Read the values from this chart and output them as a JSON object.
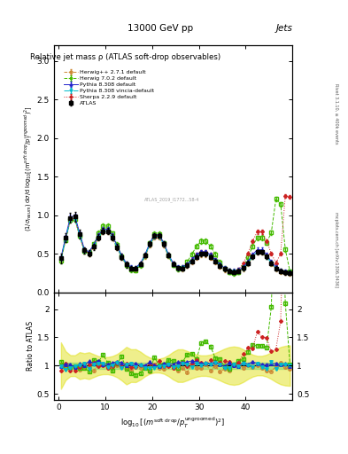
{
  "title_top": "13000 GeV pp",
  "title_right": "Jets",
  "plot_title": "Relative jet mass ρ (ATLAS soft-drop observables)",
  "ylabel_main": "(1/σ_{resum}) dσ/d log_{10}[(m^{soft drop}/p_T^{ungroomed})^2]",
  "ylabel_ratio": "Ratio to ATLAS",
  "right_label_top": "Rivet 3.1.10, ≥ 400k events",
  "right_label_bot": "mcplots.cern.ch [arXiv:1306.3436]",
  "watermark": "ATLAS_2019_I1772...58-4",
  "xlim": [
    -1,
    50
  ],
  "ylim_main": [
    0,
    3.2
  ],
  "ylim_ratio": [
    0.4,
    2.3
  ],
  "yticks_main": [
    0,
    0.5,
    1.0,
    1.5,
    2.0,
    2.5,
    3.0
  ],
  "yticks_ratio": [
    0.5,
    1.0,
    1.5,
    2.0
  ],
  "xticks": [
    0,
    10,
    20,
    30,
    40
  ],
  "color_herwig271": "#cc8833",
  "color_herwig702": "#44bb00",
  "color_pythia308": "#2222cc",
  "color_pythia308v": "#00bbcc",
  "color_sherpa229": "#cc2222",
  "color_atlas": "#000000",
  "band_yellow": "#dddd00",
  "band_yellow_alpha": 0.45,
  "band_green": "#55cc55",
  "band_green_alpha": 0.35
}
